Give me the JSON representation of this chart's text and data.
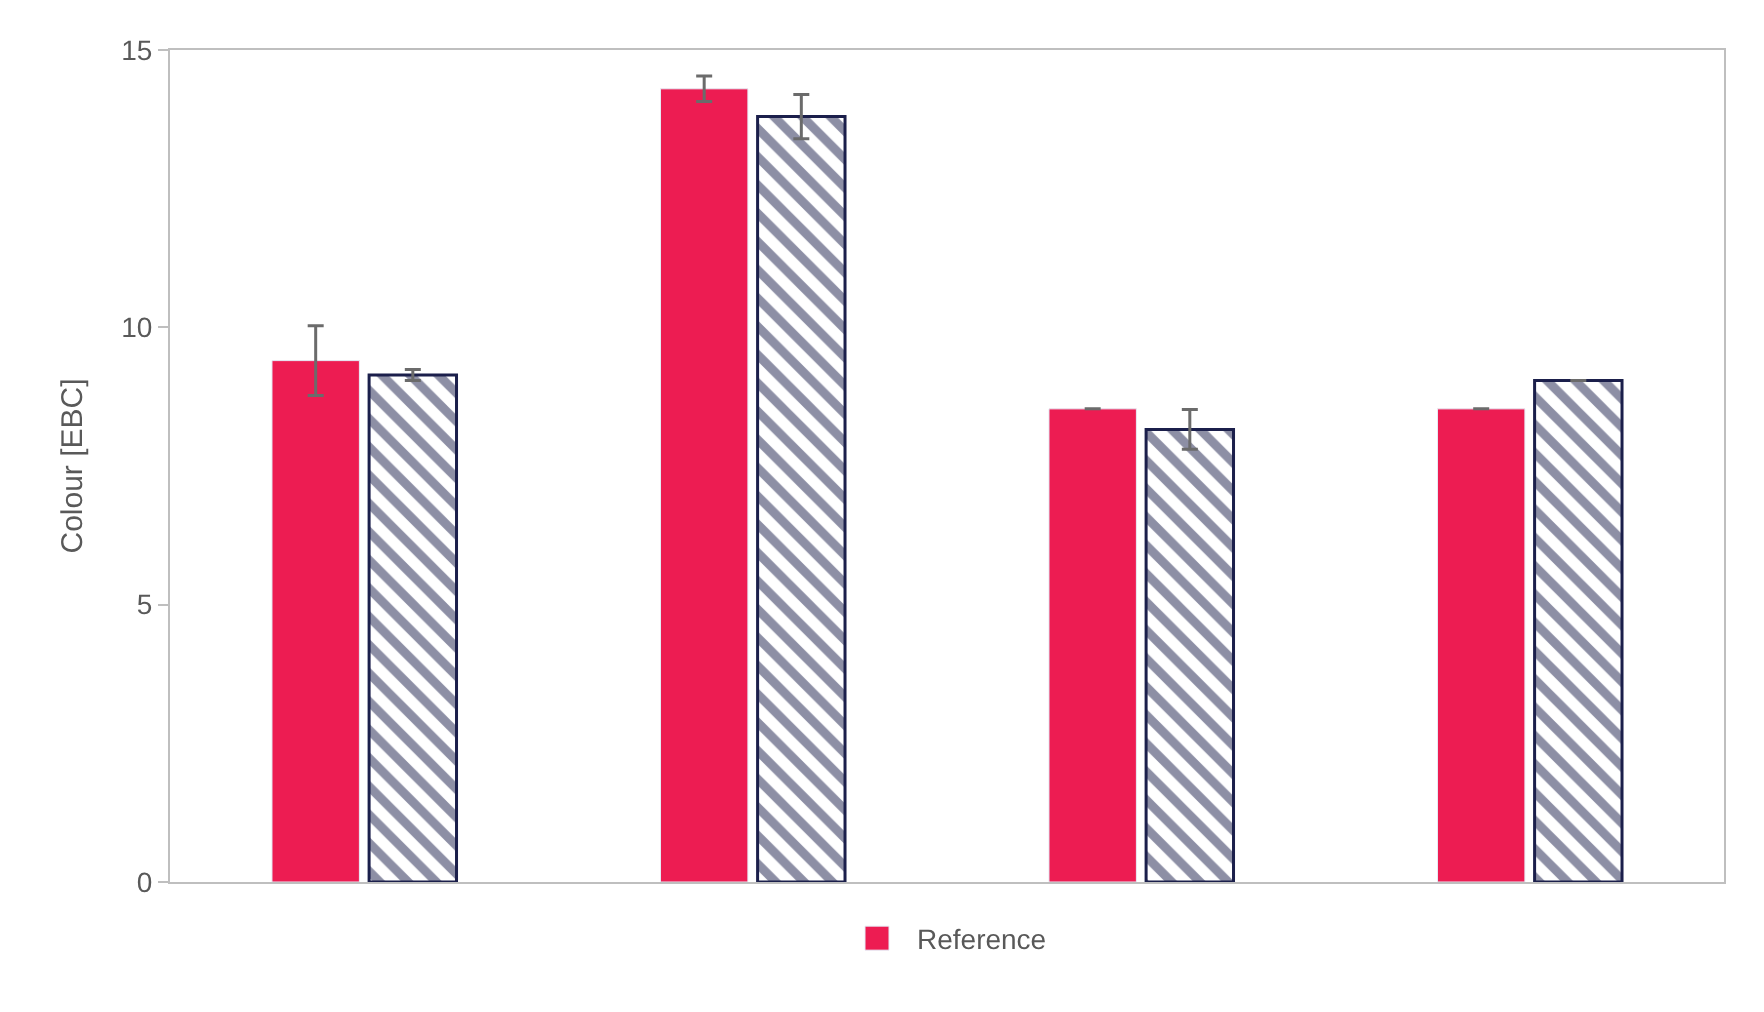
{
  "chart_data": {
    "type": "bar",
    "ylabel": "Colour [EBC]",
    "categories": [
      null,
      null,
      null,
      null
    ],
    "series": [
      {
        "name": "Reference",
        "color": "#ed1c52",
        "values": [
          9.4,
          14.3,
          8.53,
          8.53
        ],
        "errors": [
          0.63,
          0.23,
          0,
          0
        ]
      },
      {
        "color": "#1b1f4b",
        "values": [
          9.14,
          13.8,
          8.16,
          9.04
        ],
        "errors": [
          0.1,
          0.4,
          0.36,
          0
        ]
      }
    ],
    "ylim": [
      0,
      15
    ],
    "yticks": [
      0,
      5,
      10,
      15
    ],
    "legend": "bottom"
  }
}
